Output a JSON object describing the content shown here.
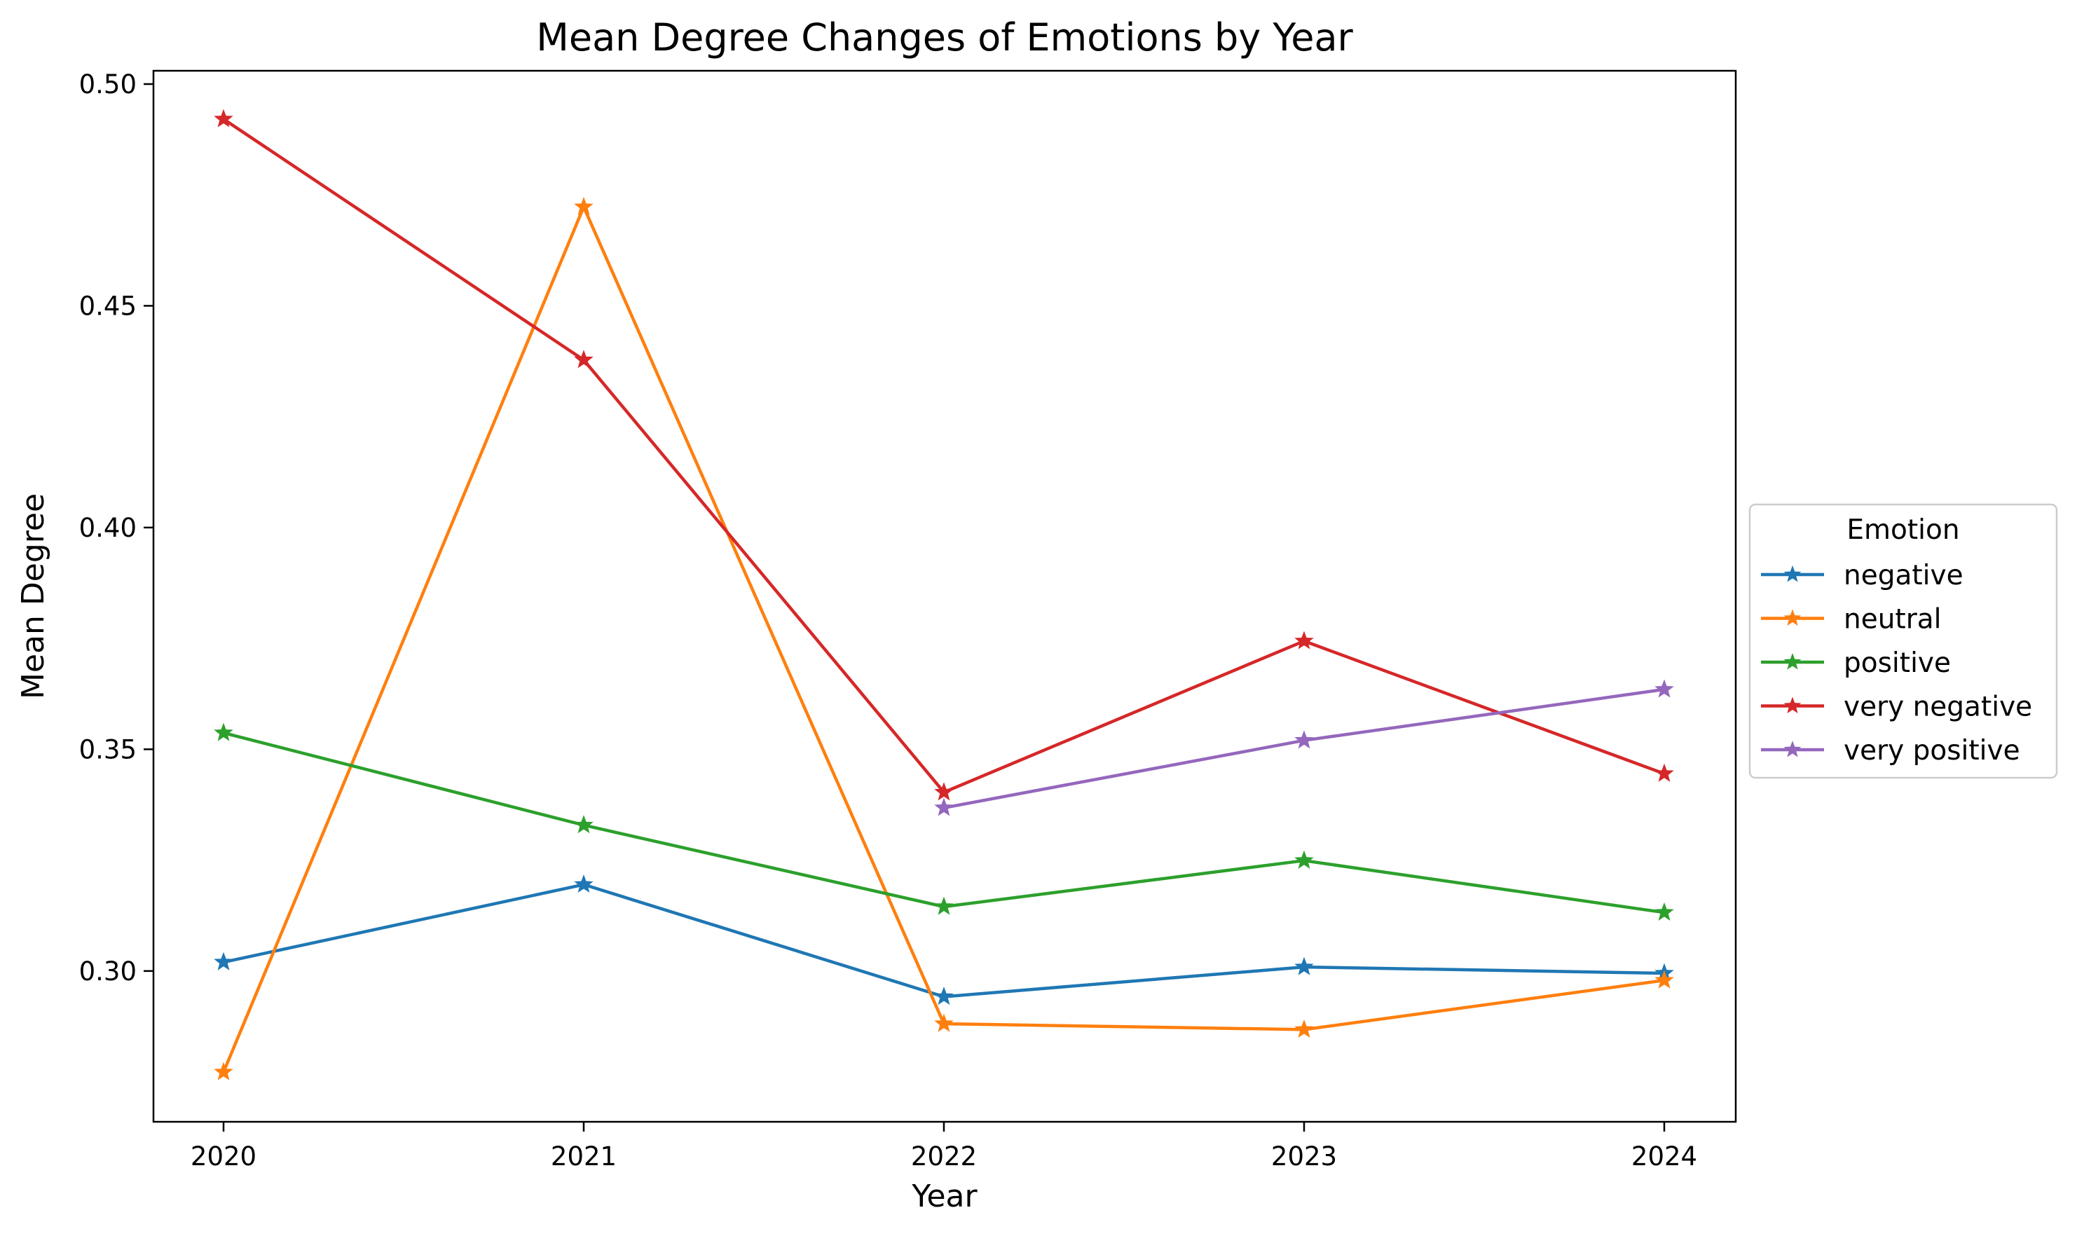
{
  "chart_data": {
    "type": "line",
    "title": "Mean Degree Changes of Emotions by Year",
    "xlabel": "Year",
    "ylabel": "Mean Degree",
    "x": [
      "2020",
      "2021",
      "2022",
      "2023",
      "2024"
    ],
    "ylim": [
      0.266,
      0.503
    ],
    "yticks": [
      "0.30",
      "0.35",
      "0.40",
      "0.45",
      "0.50"
    ],
    "grid": false,
    "marker": "star",
    "legend": {
      "title": "Emotion",
      "placement": "center-right-outside"
    },
    "series": [
      {
        "name": "negative",
        "color": "#1f77b4",
        "values": [
          0.302,
          0.3195,
          0.2942,
          0.3009,
          0.2995
        ]
      },
      {
        "name": "neutral",
        "color": "#ff7f0e",
        "values": [
          0.2772,
          0.4723,
          0.2881,
          0.2868,
          0.2979
        ]
      },
      {
        "name": "positive",
        "color": "#2ca02c",
        "values": [
          0.3537,
          0.3329,
          0.3145,
          0.3249,
          0.3132
        ]
      },
      {
        "name": "very negative",
        "color": "#d62728",
        "values": [
          0.4921,
          0.4378,
          0.3403,
          0.3744,
          0.3445
        ]
      },
      {
        "name": "very positive",
        "color": "#9467bd",
        "values": [
          null,
          null,
          0.3368,
          0.352,
          0.3635
        ]
      }
    ]
  }
}
